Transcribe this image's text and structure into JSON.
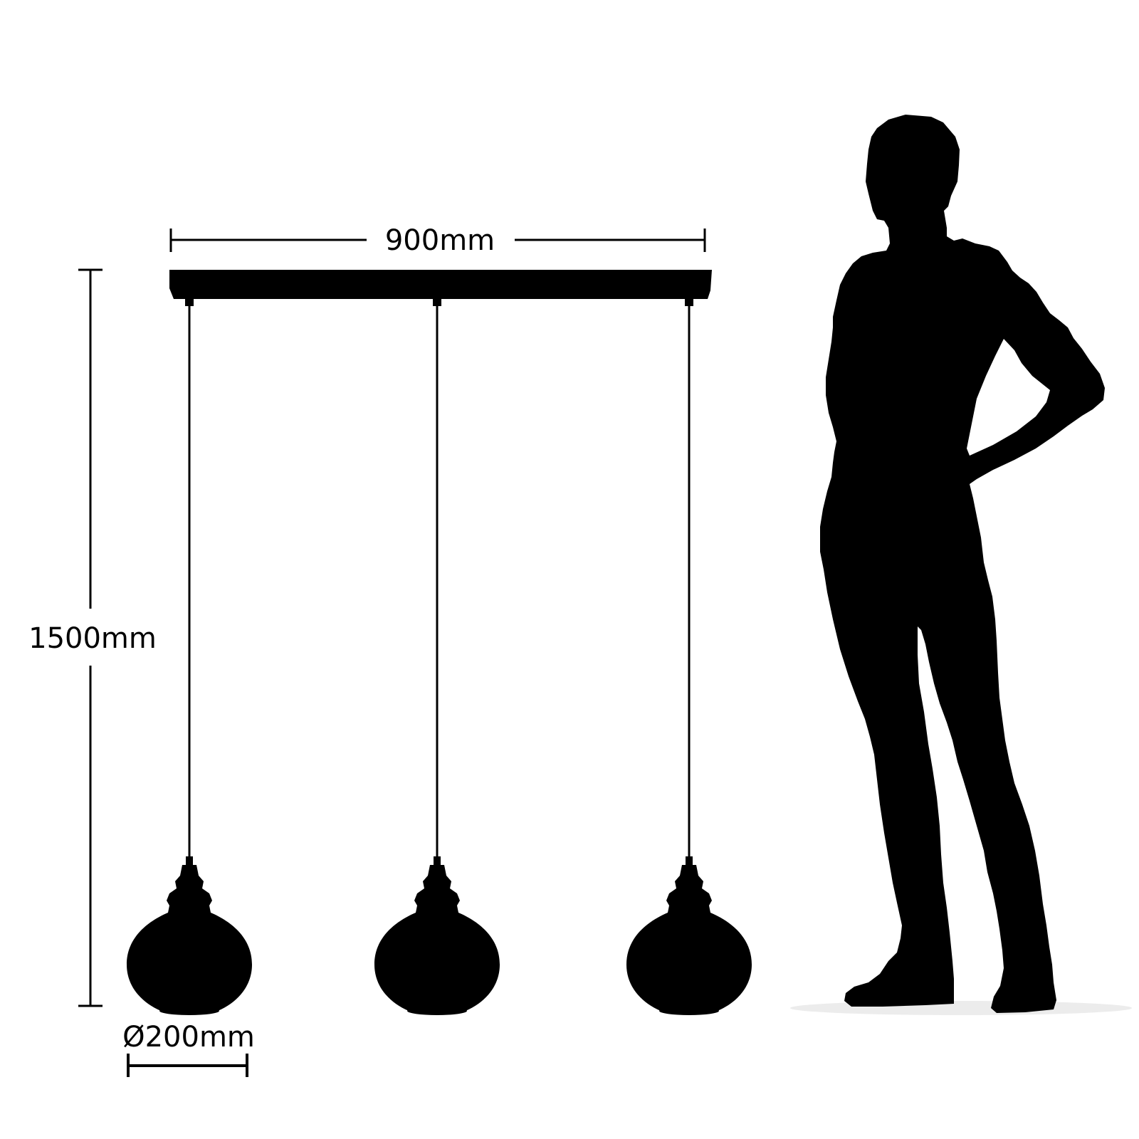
{
  "dimensions": {
    "width_label": "900mm",
    "height_label": "1500mm",
    "shade_diameter_label": "Ø200mm"
  },
  "colors": {
    "silhouette": "#000000",
    "background": "#ffffff",
    "shadow": "#e6e6e6"
  },
  "lamp": {
    "pendant_count": 3
  },
  "icons": {
    "person": "person-silhouette-icon",
    "pendant": "pendant-shade-icon"
  }
}
